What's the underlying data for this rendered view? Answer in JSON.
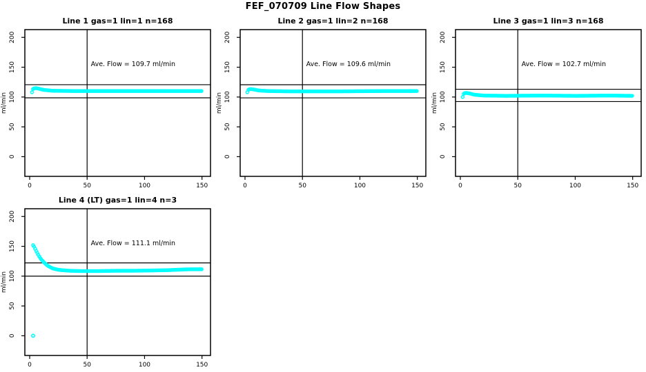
{
  "page_title": "FEF_070709  Line Flow Shapes",
  "colors": {
    "marker": "#00FFFF",
    "axis": "#000000",
    "background": "#FFFFFF"
  },
  "axes": {
    "ylabel": "ml/min",
    "yticks": [
      0,
      50,
      100,
      150,
      200
    ],
    "xticks": [
      0,
      50,
      100,
      150
    ],
    "ylim_render": [
      -33,
      213
    ],
    "xlim_render": [
      -4.2,
      157.4
    ],
    "vline_x": 50,
    "grid": false
  },
  "chart_data": [
    {
      "type": "scatter",
      "title": "Line 1 gas=1 lin=1 n=168",
      "annotation": "Ave. Flow =  109.7  ml/min",
      "ave_flow_ml_min": 109.7,
      "n": 168,
      "gas": 1,
      "lin": 1,
      "ref_lines": [
        98.7,
        120.7
      ],
      "keypoints": [
        [
          2,
          108
        ],
        [
          3,
          114
        ],
        [
          5,
          115
        ],
        [
          8,
          114
        ],
        [
          12,
          112
        ],
        [
          20,
          110.5
        ],
        [
          40,
          110
        ],
        [
          80,
          110
        ],
        [
          120,
          110
        ],
        [
          150,
          110
        ]
      ],
      "outliers": []
    },
    {
      "type": "scatter",
      "title": "Line 2 gas=1 lin=2 n=168",
      "annotation": "Ave. Flow =  109.6  ml/min",
      "ave_flow_ml_min": 109.6,
      "n": 168,
      "gas": 1,
      "lin": 2,
      "ref_lines": [
        98.6,
        120.6
      ],
      "keypoints": [
        [
          2,
          108
        ],
        [
          3,
          112.5
        ],
        [
          5,
          113.5
        ],
        [
          8,
          112.5
        ],
        [
          12,
          111
        ],
        [
          20,
          110
        ],
        [
          40,
          109.5
        ],
        [
          80,
          109.5
        ],
        [
          120,
          110
        ],
        [
          150,
          110
        ]
      ],
      "outliers": []
    },
    {
      "type": "scatter",
      "title": "Line 3 gas=1 lin=3 n=168",
      "annotation": "Ave. Flow =  102.7  ml/min",
      "ave_flow_ml_min": 102.7,
      "n": 168,
      "gas": 1,
      "lin": 3,
      "ref_lines": [
        92.4,
        113.0
      ],
      "keypoints": [
        [
          2,
          100
        ],
        [
          3,
          106
        ],
        [
          5,
          107
        ],
        [
          8,
          106
        ],
        [
          12,
          104
        ],
        [
          20,
          102.5
        ],
        [
          40,
          102
        ],
        [
          70,
          102.5
        ],
        [
          100,
          102
        ],
        [
          130,
          102.5
        ],
        [
          150,
          102
        ]
      ],
      "outliers": []
    },
    {
      "type": "scatter",
      "title": "Line 4 (LT) gas=1 lin=4 n=3",
      "annotation": "Ave. Flow =  111.1  ml/min",
      "ave_flow_ml_min": 111.1,
      "n": 3,
      "gas": 1,
      "lin": 4,
      "ref_lines": [
        100.0,
        122.2
      ],
      "keypoints": [
        [
          3,
          152
        ],
        [
          4,
          149
        ],
        [
          6,
          141
        ],
        [
          8,
          134
        ],
        [
          10,
          128
        ],
        [
          13,
          122
        ],
        [
          16,
          117
        ],
        [
          20,
          113
        ],
        [
          24,
          111
        ],
        [
          28,
          110
        ],
        [
          35,
          109
        ],
        [
          45,
          108.5
        ],
        [
          60,
          108.5
        ],
        [
          75,
          109
        ],
        [
          90,
          109
        ],
        [
          105,
          109.5
        ],
        [
          120,
          110
        ],
        [
          132,
          111
        ],
        [
          140,
          111.5
        ],
        [
          150,
          111.5
        ]
      ],
      "outliers": [
        [
          3,
          0
        ]
      ]
    }
  ]
}
